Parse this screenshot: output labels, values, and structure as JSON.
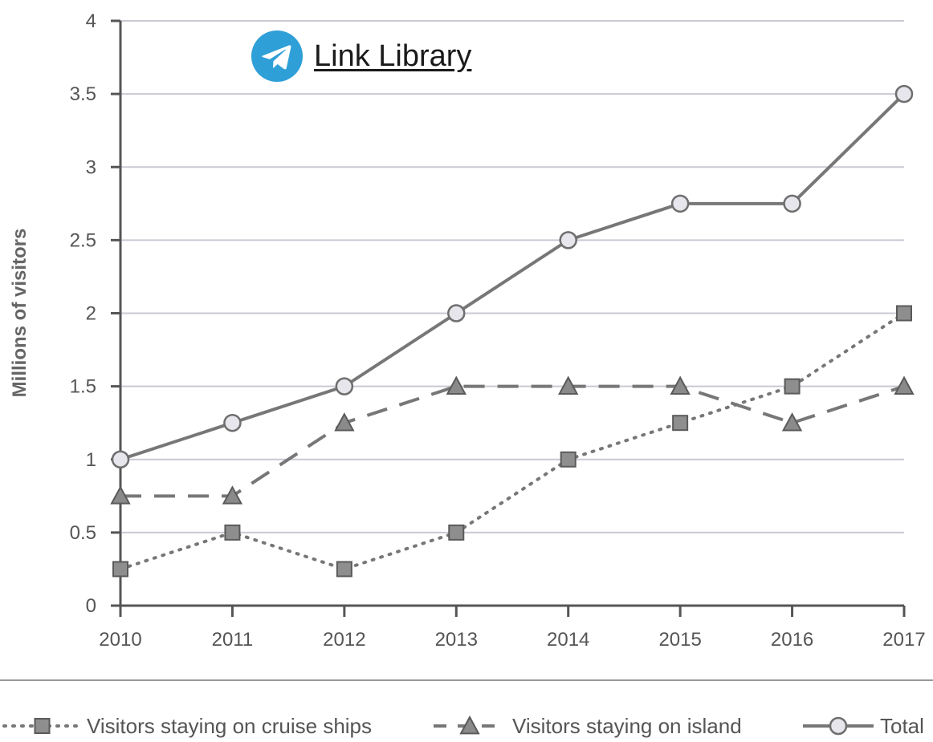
{
  "watermark": {
    "text": "Link Library",
    "icon": "telegram-icon",
    "color": "#2f9fd8"
  },
  "chart_data": {
    "type": "line",
    "title": "",
    "xlabel": "",
    "ylabel": "Millions of visitors",
    "categories": [
      "2010",
      "2011",
      "2012",
      "2013",
      "2014",
      "2015",
      "2016",
      "2017"
    ],
    "ylim": [
      0,
      4
    ],
    "yticks": [
      0,
      0.5,
      1,
      1.5,
      2,
      2.5,
      3,
      3.5,
      4
    ],
    "ytick_labels": [
      "0",
      "0.5",
      "1",
      "1.5",
      "2",
      "2.5",
      "3",
      "3.5",
      "4"
    ],
    "grid": true,
    "legend_position": "bottom",
    "series": [
      {
        "name": "Visitors staying on cruise ships",
        "values": [
          0.25,
          0.5,
          0.25,
          0.5,
          1,
          1.25,
          1.5,
          2
        ],
        "line_style": "dotted",
        "marker": "square",
        "color": "#777777"
      },
      {
        "name": "Visitors staying on island",
        "values": [
          0.75,
          0.75,
          1.25,
          1.5,
          1.5,
          1.5,
          1.25,
          1.5
        ],
        "line_style": "dashed",
        "marker": "triangle",
        "color": "#777777"
      },
      {
        "name": "Total",
        "values": [
          1,
          1.25,
          1.5,
          2,
          2.5,
          2.75,
          2.75,
          3.5
        ],
        "line_style": "solid",
        "marker": "circle",
        "color": "#777777"
      }
    ]
  }
}
